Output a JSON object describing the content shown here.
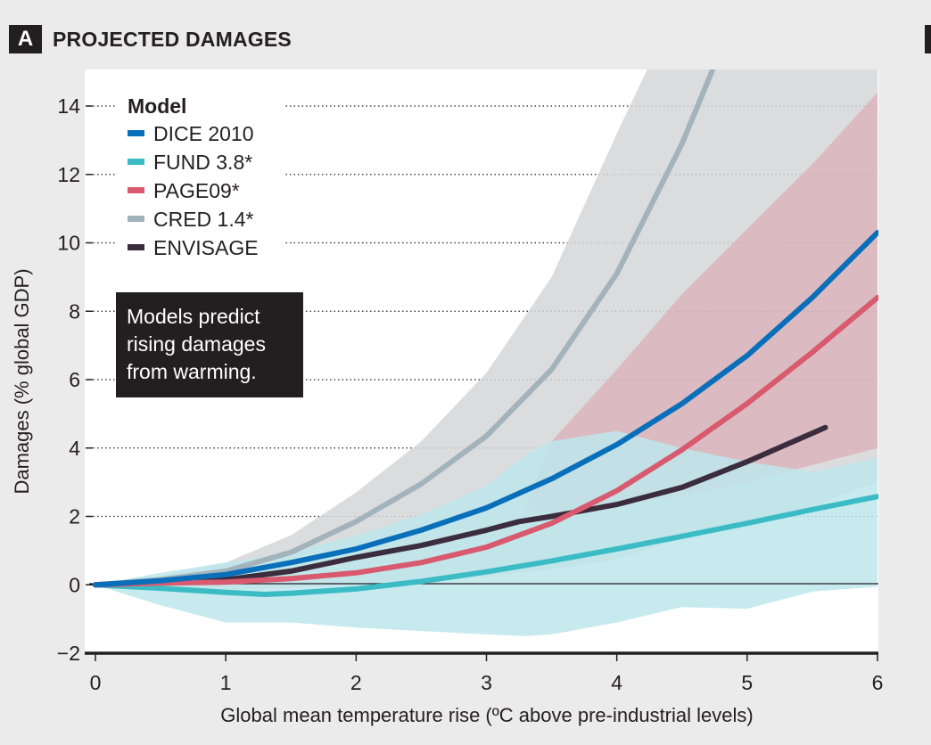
{
  "panel": {
    "letter": "A",
    "title": "PROJECTED DAMAGES"
  },
  "colors": {
    "DICE 2010": "#0a6fba",
    "FUND 3.8*": "#3bbcc5",
    "PAGE09*": "#d95a6e",
    "CRED 1.4*": "#a3b3bc",
    "ENVISAGE": "#3b2d3e",
    "fund_band": "#bde6ec",
    "cred_band": "#d5d6d8",
    "page_band": "#dba0aa"
  },
  "chart_data": {
    "type": "line",
    "title": "PROJECTED DAMAGES",
    "xlabel": "Global mean temperature rise (ºC above pre-industrial levels)",
    "ylabel": "Damages (% global GDP)",
    "xlim": [
      0,
      6
    ],
    "ylim": [
      -2,
      15
    ],
    "xticks": [
      0,
      1,
      2,
      3,
      4,
      5,
      6
    ],
    "yticks": [
      -2,
      0,
      2,
      4,
      6,
      8,
      10,
      12,
      14
    ],
    "ytick_labels": [
      "−2",
      "0",
      "2",
      "4",
      "6",
      "8",
      "10",
      "12",
      "14"
    ],
    "grid": "horizontal dotted",
    "legend": {
      "title": "Model",
      "position": "top-left",
      "entries": [
        "DICE 2010",
        "FUND 3.8*",
        "PAGE09*",
        "CRED 1.4*",
        "ENVISAGE"
      ]
    },
    "annotation": [
      "Models predict",
      "rising damages",
      "from warming."
    ],
    "series": [
      {
        "name": "DICE 2010",
        "x": [
          0,
          0.5,
          1,
          1.5,
          2,
          2.5,
          3,
          3.5,
          4,
          4.5,
          5,
          5.5,
          6
        ],
        "y": [
          0,
          0.12,
          0.3,
          0.65,
          1.05,
          1.6,
          2.25,
          3.1,
          4.1,
          5.3,
          6.7,
          8.4,
          10.3
        ]
      },
      {
        "name": "FUND 3.8*",
        "x": [
          0,
          0.5,
          1,
          1.3,
          1.5,
          2,
          2.5,
          3,
          3.5,
          4,
          4.5,
          5,
          5.5,
          6
        ],
        "y": [
          0,
          -0.1,
          -0.22,
          -0.28,
          -0.25,
          -0.12,
          0.1,
          0.38,
          0.7,
          1.05,
          1.42,
          1.8,
          2.2,
          2.58
        ]
      },
      {
        "name": "PAGE09*",
        "x": [
          0,
          0.5,
          1,
          1.5,
          2,
          2.5,
          3,
          3.5,
          4,
          4.5,
          5,
          5.5,
          6
        ],
        "y": [
          0,
          0.05,
          0.08,
          0.18,
          0.35,
          0.65,
          1.1,
          1.8,
          2.75,
          3.95,
          5.3,
          6.8,
          8.4
        ]
      },
      {
        "name": "CRED 1.4*",
        "x": [
          0,
          0.5,
          1,
          1.5,
          2,
          2.5,
          3,
          3.5,
          4,
          4.5,
          4.75
        ],
        "y": [
          0,
          0.15,
          0.4,
          0.95,
          1.85,
          2.95,
          4.35,
          6.3,
          9.1,
          12.9,
          15.2
        ]
      },
      {
        "name": "ENVISAGE",
        "x": [
          0,
          0.5,
          1,
          1.5,
          2,
          2.5,
          3,
          3.25,
          3.5,
          4,
          4.5,
          5,
          5.3,
          5.6
        ],
        "y": [
          0,
          0.1,
          0.15,
          0.4,
          0.8,
          1.15,
          1.6,
          1.85,
          2.0,
          2.35,
          2.85,
          3.6,
          4.1,
          4.6
        ]
      }
    ],
    "bands": [
      {
        "name": "CRED 1.4* range",
        "x": [
          0,
          0.5,
          1,
          1.5,
          2,
          2.5,
          3,
          3.5,
          4,
          4.25,
          4.5,
          5,
          5.5,
          6
        ],
        "upper": [
          0,
          0.25,
          0.65,
          1.45,
          2.7,
          4.2,
          6.2,
          9.0,
          13.2,
          15.2,
          15.2,
          15.2,
          15.2,
          15.2
        ],
        "lower": [
          0,
          -0.1,
          -0.15,
          -0.08,
          0.0,
          0.1,
          0.25,
          0.45,
          0.75,
          1.05,
          1.35,
          1.75,
          2.3,
          3.0
        ]
      },
      {
        "name": "PAGE09* range",
        "x": [
          3.3,
          3.5,
          4,
          4.5,
          5,
          5.5,
          6
        ],
        "upper": [
          2.2,
          4.2,
          6.3,
          8.5,
          10.4,
          12.3,
          14.4
        ],
        "lower": [
          2.2,
          2.1,
          2.3,
          2.6,
          3.0,
          3.5,
          4.0
        ]
      },
      {
        "name": "FUND 3.8* range",
        "x": [
          0,
          0.5,
          1,
          1.5,
          2,
          2.5,
          3,
          3.3,
          3.5,
          4,
          4.5,
          5,
          5.5,
          6
        ],
        "upper": [
          0,
          0.35,
          0.65,
          0.95,
          1.45,
          2.05,
          2.9,
          3.8,
          4.2,
          4.5,
          4.0,
          3.6,
          3.3,
          3.7
        ],
        "lower": [
          0,
          -0.6,
          -1.1,
          -1.1,
          -1.25,
          -1.35,
          -1.45,
          -1.5,
          -1.45,
          -1.1,
          -0.65,
          -0.7,
          -0.2,
          -0.05
        ]
      }
    ]
  }
}
